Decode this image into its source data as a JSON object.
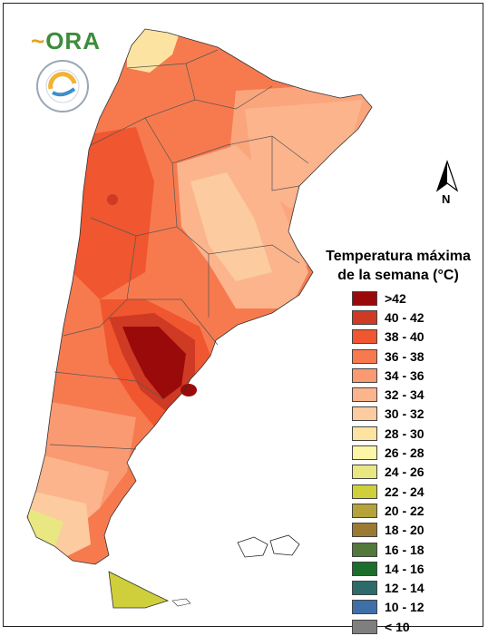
{
  "logos": {
    "ora_text": "ORA"
  },
  "north_arrow": {
    "letter": "N",
    "icon": "north-arrow-icon"
  },
  "legend": {
    "title_line1": "Temperatura máxima",
    "title_line2": "de la semana (°C)",
    "items": [
      {
        "label": ">42",
        "color": "#9b0a0a"
      },
      {
        "label": "40 - 42",
        "color": "#cf3a25"
      },
      {
        "label": "38 - 40",
        "color": "#f0562f"
      },
      {
        "label": "36 - 38",
        "color": "#f77a4f"
      },
      {
        "label": "34 - 36",
        "color": "#fa9a72"
      },
      {
        "label": "32 - 34",
        "color": "#fbb48c"
      },
      {
        "label": "30 - 32",
        "color": "#fccb9f"
      },
      {
        "label": "28 - 30",
        "color": "#fde3a1"
      },
      {
        "label": "26 - 28",
        "color": "#fcf6a6"
      },
      {
        "label": "24 - 26",
        "color": "#e8e782"
      },
      {
        "label": "22 - 24",
        "color": "#cfcf3c"
      },
      {
        "label": "20 - 22",
        "color": "#b5a23a"
      },
      {
        "label": "18 - 20",
        "color": "#9b7a31"
      },
      {
        "label": "16 - 18",
        "color": "#52783a"
      },
      {
        "label": "14 - 16",
        "color": "#1c6e2c"
      },
      {
        "label": "12 - 14",
        "color": "#2d6b6b"
      },
      {
        "label": "10 - 12",
        "color": "#3f6fa8"
      },
      {
        "label": "< 10",
        "color": "#7f7f7f"
      }
    ]
  }
}
